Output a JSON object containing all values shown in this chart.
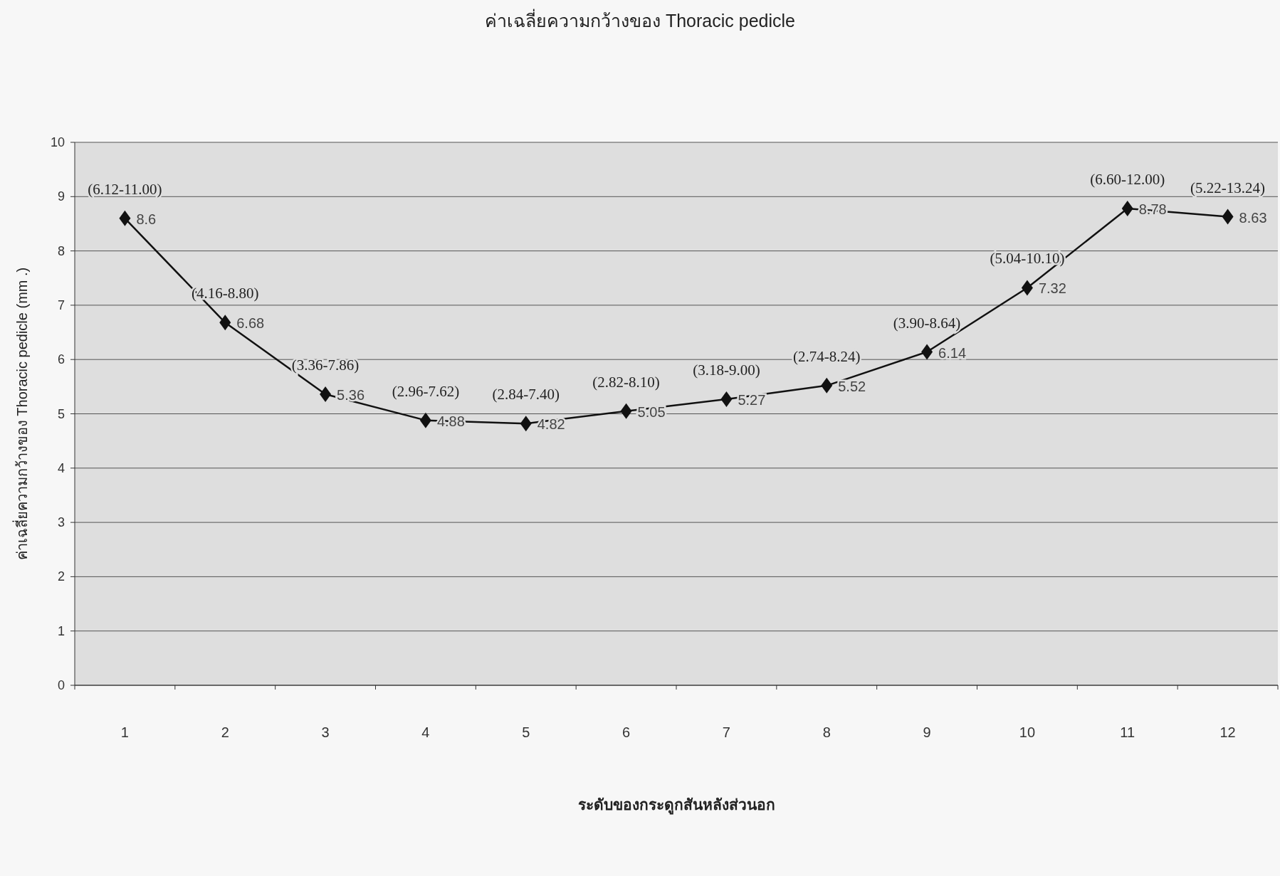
{
  "chart_data": {
    "type": "line",
    "title": "ค่าเฉลี่ยความกว้างของ Thoracic pedicle",
    "xlabel": "ระดับของกระดูกสันหลังส่วนอก",
    "ylabel": "ค่าเฉลี่ยความกว้างของ Thoracic pedicle (mm .)",
    "categories": [
      "1",
      "2",
      "3",
      "4",
      "5",
      "6",
      "7",
      "8",
      "9",
      "10",
      "11",
      "12"
    ],
    "series": [
      {
        "color": "#111111",
        "values": [
          8.6,
          6.68,
          5.36,
          4.88,
          4.82,
          5.05,
          5.27,
          5.52,
          6.14,
          7.32,
          8.78,
          8.63
        ]
      }
    ],
    "ylim": [
      0,
      10
    ],
    "yticks": [
      0,
      1,
      2,
      3,
      4,
      5,
      6,
      7,
      8,
      9,
      10
    ],
    "grid": "y",
    "marker": "diamond",
    "line_style": "solid",
    "data_labels": true,
    "annotations": [
      {
        "text": "(6.12-11.00)",
        "x": "1",
        "y": 8.6
      },
      {
        "text": "(4.16-8.80)",
        "x": "2",
        "y": 6.68
      },
      {
        "text": "(3.36-7.86)",
        "x": "3",
        "y": 5.36
      },
      {
        "text": "(2.96-7.62)",
        "x": "4",
        "y": 4.88
      },
      {
        "text": "(2.84-7.40)",
        "x": "5",
        "y": 4.82
      },
      {
        "text": "(2.82-8.10)",
        "x": "6",
        "y": 5.05
      },
      {
        "text": "(3.18-9.00)",
        "x": "7",
        "y": 5.27
      },
      {
        "text": "(2.74-8.24)",
        "x": "8",
        "y": 5.52
      },
      {
        "text": "(3.90-8.64)",
        "x": "9",
        "y": 6.14
      },
      {
        "text": "(5.04-10.10)",
        "x": "10",
        "y": 7.32
      },
      {
        "text": "(6.60-12.00)",
        "x": "11",
        "y": 8.78
      },
      {
        "text": "(5.22-13.24)",
        "x": "12",
        "y": 8.63
      }
    ]
  }
}
